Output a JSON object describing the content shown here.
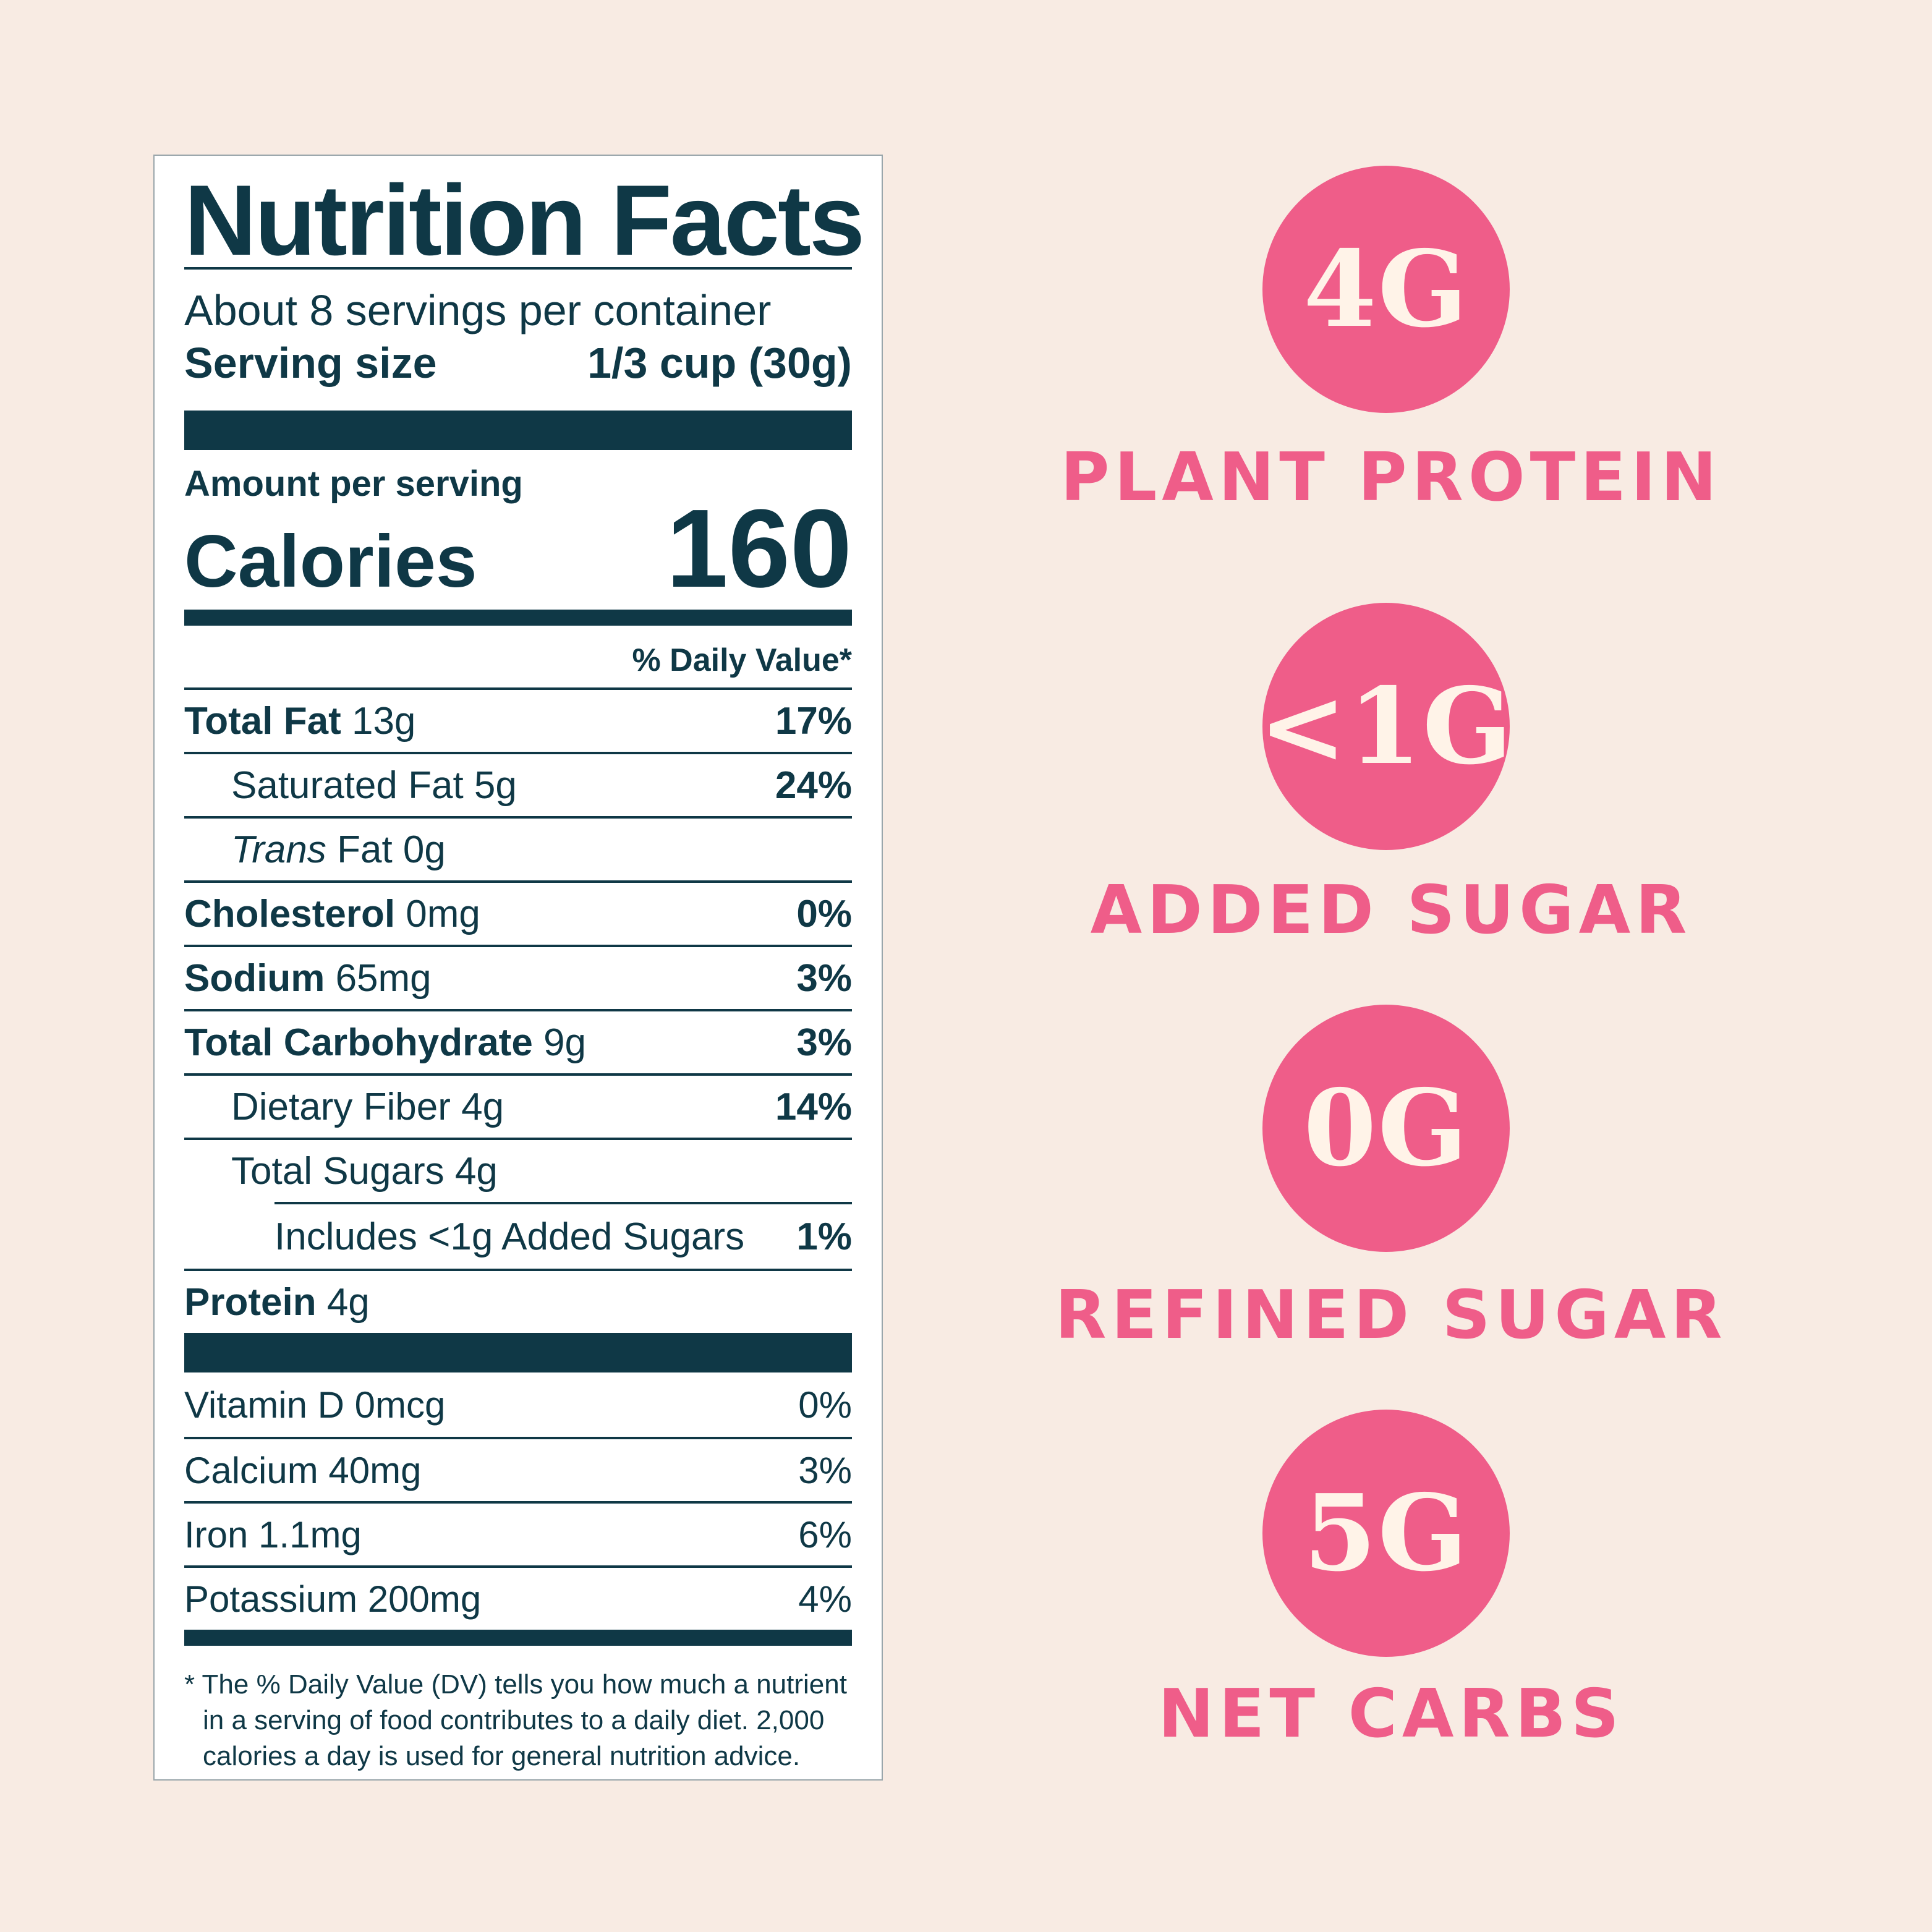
{
  "label": {
    "title": "Nutrition Facts",
    "servings_per_container": "About 8 servings per container",
    "serving_size_label": "Serving size",
    "serving_size_value": "1/3 cup (30g)",
    "amount_per_serving": "Amount per serving",
    "calories_label": "Calories",
    "calories_value": "160",
    "daily_value_header": "% Daily Value*",
    "nutrients": {
      "total_fat": {
        "name": "Total Fat",
        "amount": "13g",
        "dv": "17%"
      },
      "saturated_fat": {
        "name": "Saturated Fat 5g",
        "dv": "24%"
      },
      "trans_fat": {
        "name_italic": "Trans",
        "name_rest": "Fat 0g"
      },
      "cholesterol": {
        "name": "Cholesterol",
        "amount": "0mg",
        "dv": "0%"
      },
      "sodium": {
        "name": "Sodium",
        "amount": "65mg",
        "dv": "3%"
      },
      "total_carbohydrate": {
        "name": "Total Carbohydrate",
        "amount": "9g",
        "dv": "3%"
      },
      "dietary_fiber": {
        "name": "Dietary Fiber 4g",
        "dv": "14%"
      },
      "total_sugars": {
        "name": "Total Sugars 4g"
      },
      "added_sugars": {
        "name": "Includes <1g Added Sugars",
        "dv": "1%"
      },
      "protein": {
        "name": "Protein",
        "amount": "4g"
      }
    },
    "vitamins": [
      {
        "name": "Vitamin D 0mcg",
        "dv": "0%"
      },
      {
        "name": "Calcium 40mg",
        "dv": "3%"
      },
      {
        "name": "Iron 1.1mg",
        "dv": "6%"
      },
      {
        "name": "Potassium 200mg",
        "dv": "4%"
      }
    ],
    "footnote": "* The % Daily Value (DV) tells you how much a nutrient in a serving of food contributes to a daily diet. 2,000 calories a day is used for general nutrition advice."
  },
  "badges": [
    {
      "value": "4G",
      "caption": "PLANT PROTEIN"
    },
    {
      "value": "<1G",
      "caption": "ADDED SUGAR"
    },
    {
      "value": "0G",
      "caption": "REFINED SUGAR"
    },
    {
      "value": "5G",
      "caption": "NET CARBS"
    }
  ],
  "colors": {
    "background": "#f8ebe3",
    "label_text": "#0f3846",
    "badge_pink": "#ef5d89",
    "badge_text": "#fff3e8"
  }
}
